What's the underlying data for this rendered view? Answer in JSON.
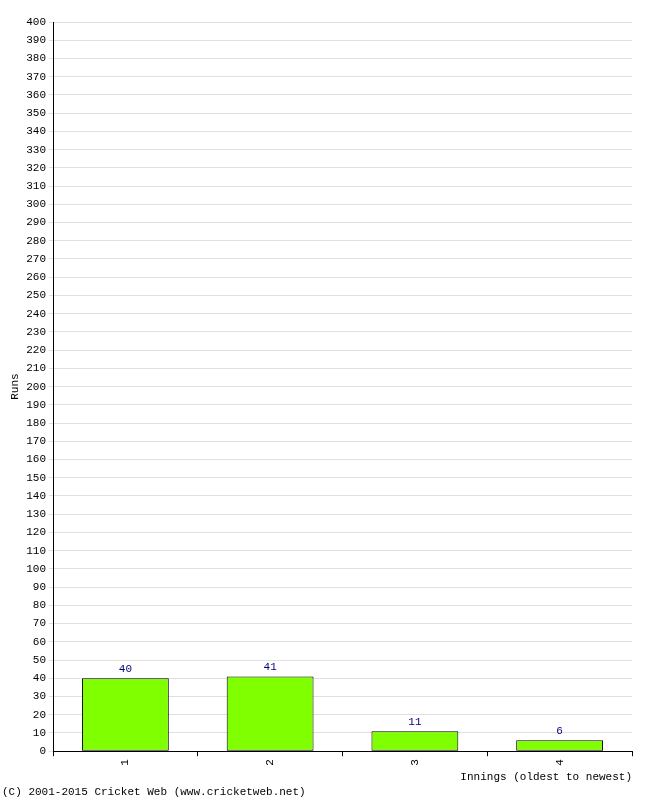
{
  "chart_data": {
    "type": "bar",
    "x_label": "Innings (oldest to newest)",
    "y_label": "Runs",
    "annotations": [
      "(C) 2001-2015 Cricket Web (www.cricketweb.net)"
    ],
    "categories": [
      "1",
      "2",
      "3",
      "4"
    ],
    "values": [
      40,
      41,
      11,
      6
    ],
    "color": "#80ff00",
    "ylim": [
      0,
      400
    ],
    "yticks": [
      0,
      10,
      20,
      30,
      40,
      50,
      60,
      70,
      80,
      90,
      100,
      110,
      120,
      130,
      140,
      150,
      160,
      170,
      180,
      190,
      200,
      210,
      220,
      230,
      240,
      250,
      260,
      270,
      280,
      290,
      300,
      310,
      320,
      330,
      340,
      350,
      360,
      370,
      380,
      390,
      400
    ],
    "grid": true,
    "data_labels": true
  }
}
